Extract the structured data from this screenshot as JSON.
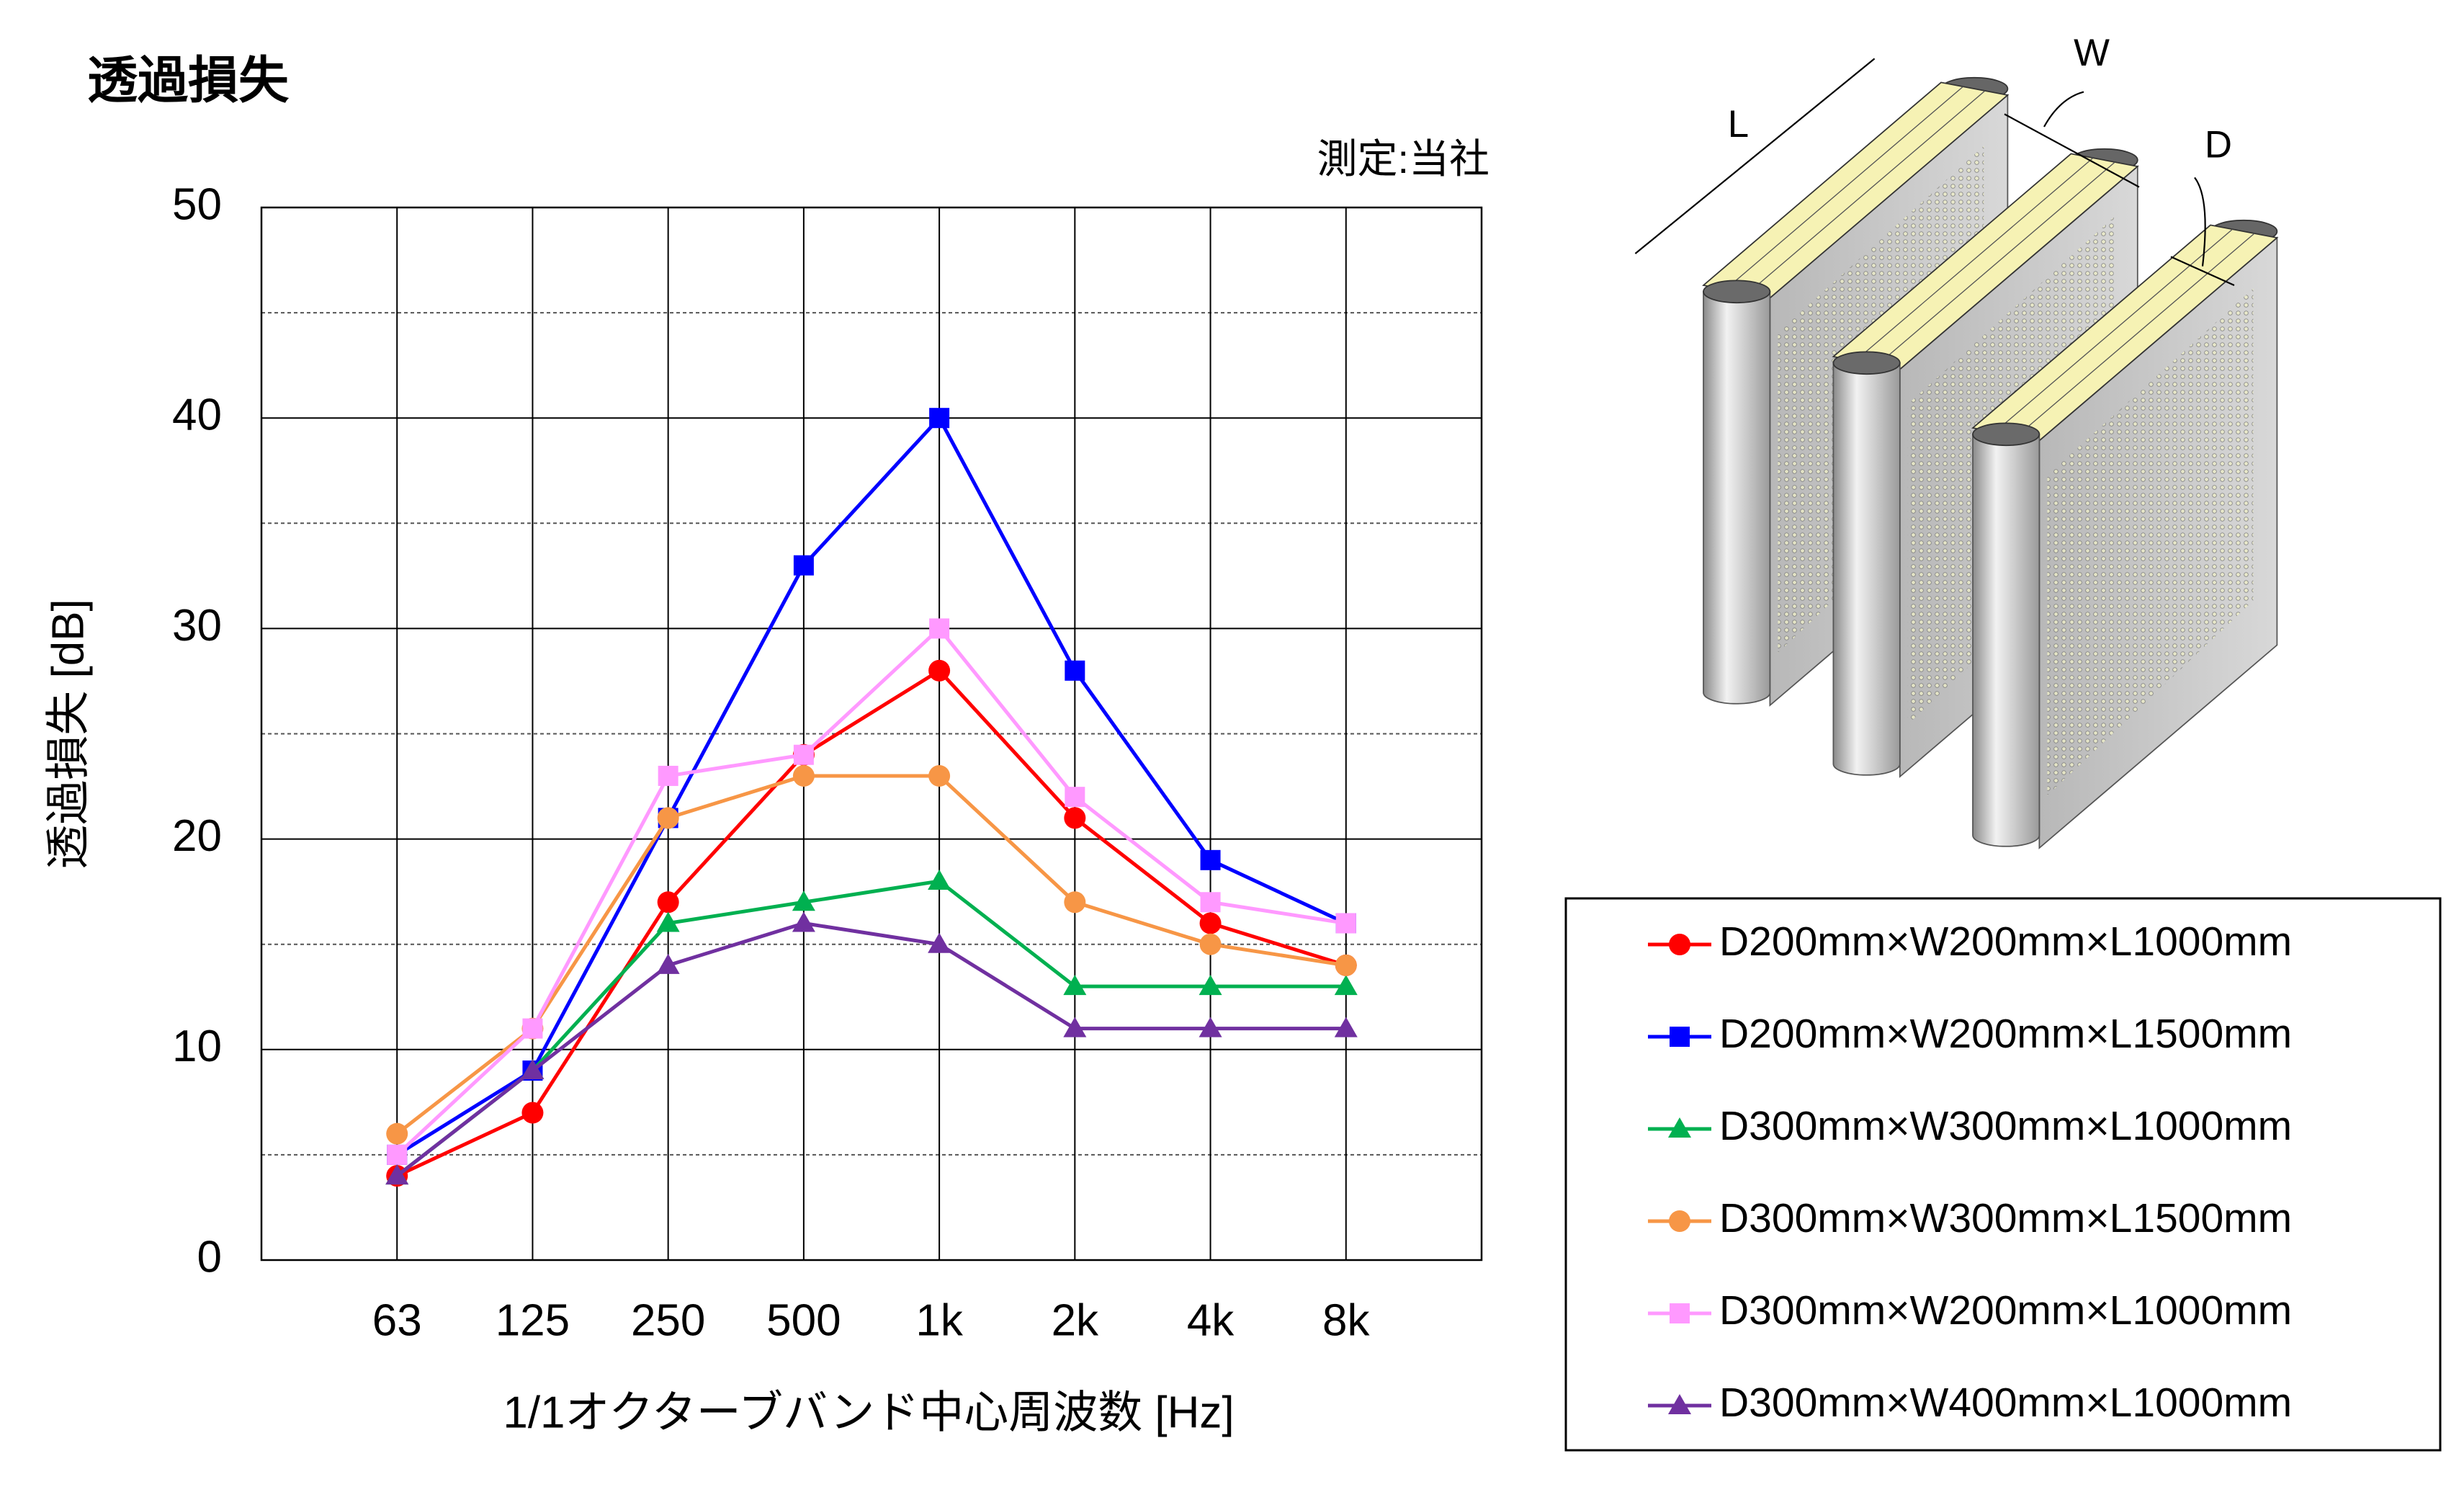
{
  "chart_data": {
    "type": "line",
    "title": "透過損失",
    "note": "測定:当社",
    "x_label": "1/1オクターブバンド中心周波数 [Hz]",
    "y_label": "透過損失 [dB]",
    "categories": [
      "63",
      "125",
      "250",
      "500",
      "1k",
      "2k",
      "4k",
      "8k"
    ],
    "series": [
      {
        "name": "D200mm×W200mm×L1000mm",
        "color": "#ff0000",
        "marker": "circle",
        "values": [
          4,
          7,
          17,
          24,
          28,
          21,
          16,
          14
        ]
      },
      {
        "name": "D200mm×W200mm×L1500mm",
        "color": "#0000ff",
        "marker": "square",
        "values": [
          5,
          9,
          21,
          33,
          40,
          28,
          19,
          16
        ]
      },
      {
        "name": "D300mm×W300mm×L1000mm",
        "color": "#00b050",
        "marker": "triangle",
        "values": [
          4,
          9,
          16,
          17,
          18,
          13,
          13,
          13
        ]
      },
      {
        "name": "D300mm×W300mm×L1500mm",
        "color": "#f79646",
        "marker": "circle",
        "values": [
          6,
          11,
          21,
          23,
          23,
          17,
          15,
          14
        ]
      },
      {
        "name": "D300mm×W200mm×L1000mm",
        "color": "#ff99ff",
        "marker": "square",
        "values": [
          5,
          11,
          23,
          24,
          30,
          22,
          17,
          16
        ]
      },
      {
        "name": "D300mm×W400mm×L1000mm",
        "color": "#7030a0",
        "marker": "triangle",
        "values": [
          4,
          9,
          14,
          16,
          15,
          11,
          11,
          11
        ]
      }
    ],
    "ylim": [
      0,
      50
    ],
    "yticks": [
      0,
      10,
      20,
      30,
      40,
      50
    ],
    "minor_gridlines": [
      5,
      15,
      25,
      35,
      45
    ],
    "grid": true
  },
  "diagram": {
    "labels": [
      "L",
      "W",
      "D"
    ]
  }
}
